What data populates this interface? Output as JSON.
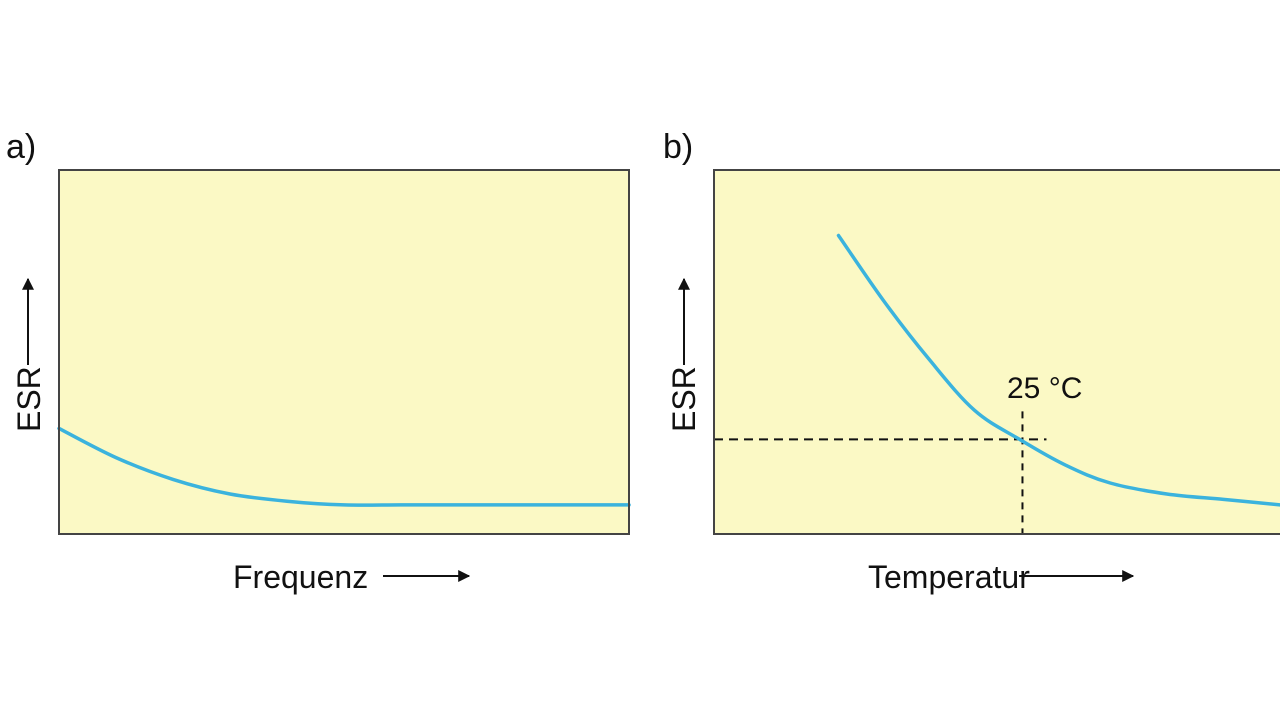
{
  "chart_data": [
    {
      "type": "line",
      "panel_label": "a)",
      "xlabel": "Frequenz",
      "ylabel": "ESR",
      "grid": false,
      "xlim": [
        0,
        100
      ],
      "ylim": [
        0,
        100
      ],
      "series": [
        {
          "color": "#3bb3dd",
          "x": [
            0,
            10,
            20,
            30,
            40,
            50,
            60,
            70,
            80,
            90,
            100
          ],
          "y": [
            29,
            21,
            15,
            11,
            9,
            8,
            8,
            8,
            8,
            8,
            8
          ]
        }
      ],
      "colors": {
        "plot_background": "#fbf9c5",
        "frame": "#444444"
      }
    },
    {
      "type": "line",
      "panel_label": "b)",
      "xlabel": "Temperatur",
      "ylabel": "ESR",
      "grid": false,
      "xlim": [
        0,
        100
      ],
      "ylim": [
        0,
        100
      ],
      "series": [
        {
          "color": "#3bb3dd",
          "x": [
            22,
            30,
            38,
            46,
            54,
            62,
            70,
            80,
            90,
            100
          ],
          "y": [
            82,
            64,
            48,
            34,
            26,
            19,
            14,
            11,
            9.5,
            8
          ]
        }
      ],
      "reference": {
        "label": "25 °C",
        "x": 54.5,
        "y": 26
      },
      "colors": {
        "plot_background": "#fbf9c5",
        "frame": "#444444"
      }
    }
  ]
}
